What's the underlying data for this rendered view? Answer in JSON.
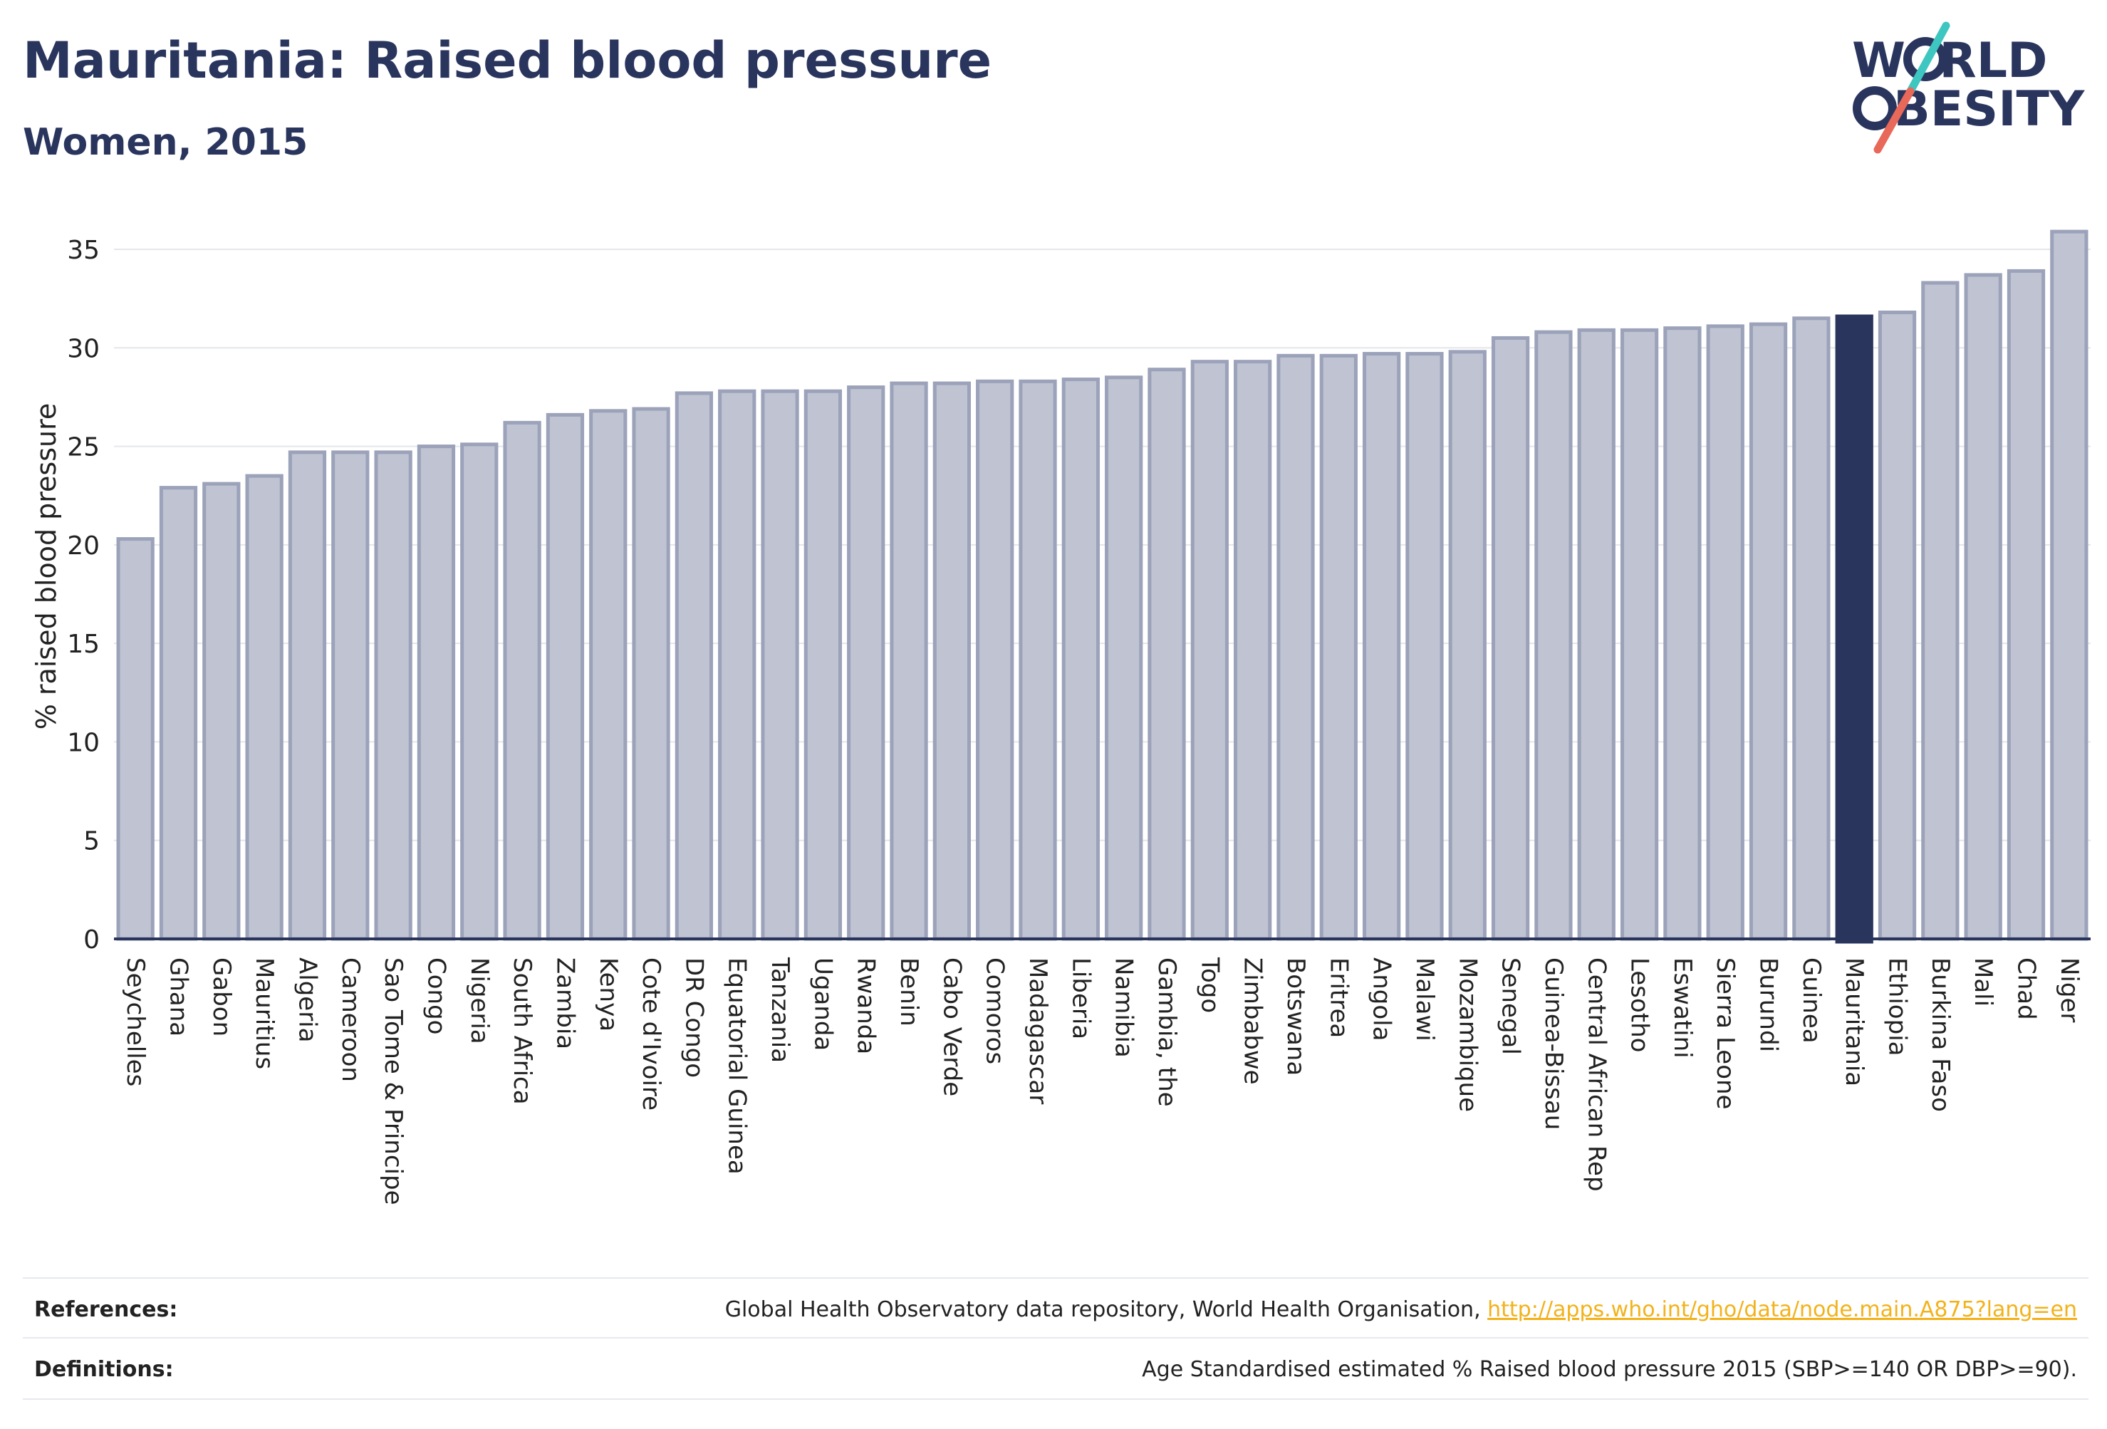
{
  "header": {
    "title": "Mauritania: Raised blood pressure",
    "subtitle": "Women, 2015"
  },
  "logo": {
    "line1": "W  RLD",
    "line2": "BESITY",
    "text": "WORLD OBESITY",
    "colors": {
      "navy": "#2a355e",
      "teal": "#3ec6c0",
      "coral": "#e8685a"
    }
  },
  "colors": {
    "bar": "#bfc3d2",
    "bar_edge": "#9ba2b9",
    "highlight": "#2a355e",
    "grid": "#e4e6ec",
    "axis": "#2a355e",
    "text": "#222222"
  },
  "chart_data": {
    "type": "bar",
    "ylabel": "% raised blood pressure",
    "ylim": [
      0,
      36
    ],
    "yticks": [
      0,
      5,
      10,
      15,
      20,
      25,
      30,
      35
    ],
    "grid": true,
    "highlight": "Mauritania",
    "categories": [
      "Seychelles",
      "Ghana",
      "Gabon",
      "Mauritius",
      "Algeria",
      "Cameroon",
      "Sao Tome & Principe",
      "Congo",
      "Nigeria",
      "South Africa",
      "Zambia",
      "Kenya",
      "Cote d'Ivoire",
      "DR Congo",
      "Equatorial Guinea",
      "Tanzania",
      "Uganda",
      "Rwanda",
      "Benin",
      "Cabo Verde",
      "Comoros",
      "Madagascar",
      "Liberia",
      "Namibia",
      "Gambia, the",
      "Togo",
      "Zimbabwe",
      "Botswana",
      "Eritrea",
      "Angola",
      "Malawi",
      "Mozambique",
      "Senegal",
      "Guinea-Bissau",
      "Central African Rep",
      "Lesotho",
      "Eswatini",
      "Sierra Leone",
      "Burundi",
      "Guinea",
      "Mauritania",
      "Ethiopia",
      "Burkina Faso",
      "Mali",
      "Chad",
      "Niger"
    ],
    "values": [
      20.3,
      22.9,
      23.1,
      23.5,
      24.7,
      24.7,
      24.7,
      25.0,
      25.1,
      26.2,
      26.6,
      26.8,
      26.9,
      27.7,
      27.8,
      27.8,
      27.8,
      28.0,
      28.2,
      28.2,
      28.3,
      28.3,
      28.4,
      28.5,
      28.9,
      29.3,
      29.3,
      29.6,
      29.6,
      29.7,
      29.7,
      29.8,
      30.5,
      30.8,
      30.9,
      30.9,
      31.0,
      31.1,
      31.2,
      31.5,
      31.6,
      31.8,
      33.3,
      33.7,
      33.9,
      35.9
    ]
  },
  "footer": {
    "references_label": "References:",
    "references_text": "Global Health Observatory data repository, World Health Organisation, ",
    "references_link": "http://apps.who.int/gho/data/node.main.A875?lang=en",
    "definitions_label": "Definitions:",
    "definitions_text": "Age Standardised estimated % Raised blood pressure 2015 (SBP>=140 OR DBP>=90)."
  }
}
